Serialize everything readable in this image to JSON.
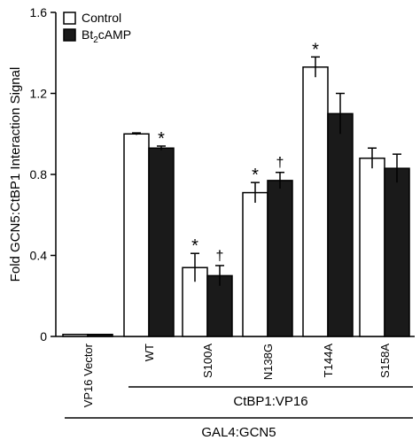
{
  "chart_data": {
    "type": "bar",
    "ylabel": "Fold GCN5:CtBP1 Interaction Signal",
    "ylim": [
      0,
      1.6
    ],
    "yticks": [
      {
        "value": 0,
        "label": "0"
      },
      {
        "value": 0.4,
        "label": "0.4"
      },
      {
        "value": 0.8,
        "label": "0.8"
      },
      {
        "value": 1.2,
        "label": "1.2"
      },
      {
        "value": 1.6,
        "label": "1.6"
      }
    ],
    "categories": [
      "VP16 Vector",
      "WT",
      "S100A",
      "N138G",
      "T144A",
      "S158A"
    ],
    "series": [
      {
        "name": "Control",
        "color": "#ffffff",
        "values": [
          0.01,
          1.0,
          0.34,
          0.71,
          1.33,
          0.88
        ],
        "errors": [
          0.0,
          0.005,
          0.07,
          0.05,
          0.05,
          0.05
        ],
        "annotations": [
          "",
          "",
          "*",
          "*",
          "*",
          ""
        ]
      },
      {
        "name_parts": {
          "pre": "Bt",
          "sub": "2",
          "post": "cAMP"
        },
        "color": "#1a1a1a",
        "values": [
          0.01,
          0.93,
          0.3,
          0.77,
          1.1,
          0.83
        ],
        "errors": [
          0.0,
          0.01,
          0.05,
          0.04,
          0.1,
          0.07
        ],
        "annotations": [
          "",
          "*",
          "†",
          "†",
          "",
          ""
        ]
      }
    ],
    "legend": {
      "position": "top-left"
    },
    "groups": [
      {
        "label": "CtBP1:VP16",
        "from": 1,
        "to": 5
      },
      {
        "label": "GAL4:GCN5",
        "from": 0,
        "to": 5
      }
    ]
  }
}
